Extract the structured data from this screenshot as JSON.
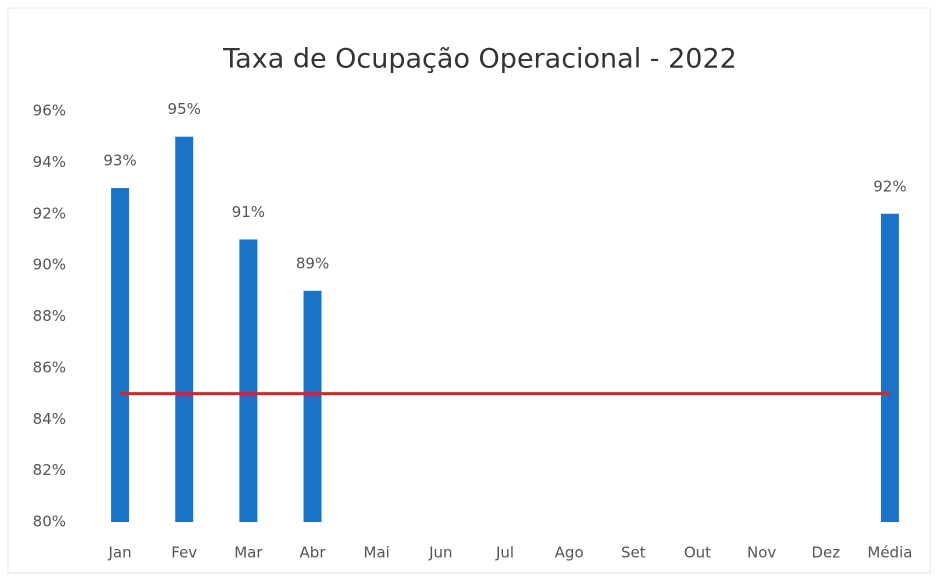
{
  "chart_data": {
    "type": "bar",
    "title": "Taxa de Ocupação Operacional - 2022",
    "categories": [
      "Jan",
      "Fev",
      "Mar",
      "Abr",
      "Mai",
      "Jun",
      "Jul",
      "Ago",
      "Set",
      "Out",
      "Nov",
      "Dez",
      "Média"
    ],
    "values": [
      93,
      95,
      91,
      89,
      null,
      null,
      null,
      null,
      null,
      null,
      null,
      null,
      92
    ],
    "value_labels": [
      "93%",
      "95%",
      "91%",
      "89%",
      null,
      null,
      null,
      null,
      null,
      null,
      null,
      null,
      "92%"
    ],
    "color": "#1a73c9",
    "target_line": {
      "value": 85,
      "color": "#d0282e"
    },
    "ylim": [
      80,
      96
    ],
    "yticks": [
      {
        "value": 80,
        "label": "80%"
      },
      {
        "value": 82,
        "label": "82%"
      },
      {
        "value": 84,
        "label": "84%"
      },
      {
        "value": 86,
        "label": "86%"
      },
      {
        "value": 88,
        "label": "88%"
      },
      {
        "value": 90,
        "label": "90%"
      },
      {
        "value": 92,
        "label": "92%"
      },
      {
        "value": 94,
        "label": "94%"
      },
      {
        "value": 96,
        "label": "96%"
      }
    ],
    "grid": false
  }
}
